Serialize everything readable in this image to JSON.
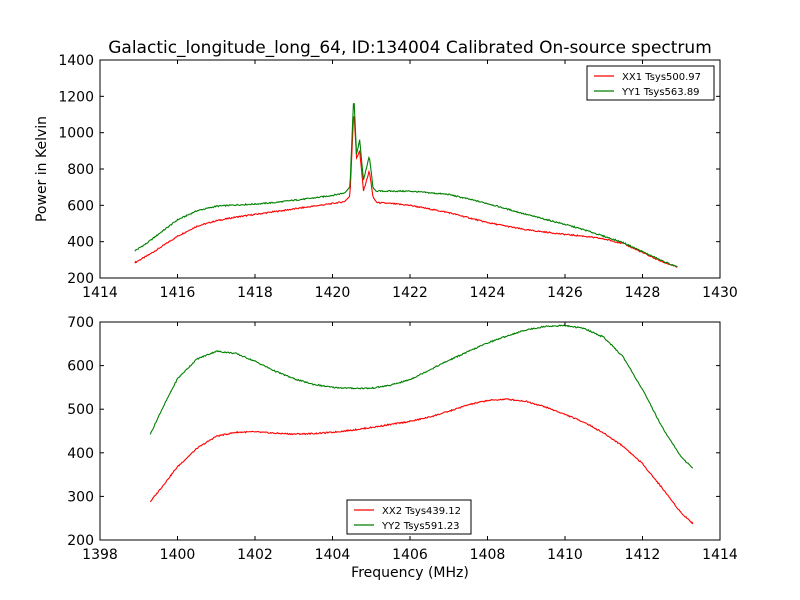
{
  "chart_data": [
    {
      "type": "line",
      "title": "Galactic_longitude_long_64, ID:134004 Calibrated On-source spectrum",
      "xlabel": "",
      "ylabel": "Power in Kelvin",
      "xlim": [
        1414,
        1430
      ],
      "ylim": [
        200,
        1400
      ],
      "xticks": [
        1414,
        1416,
        1418,
        1420,
        1422,
        1424,
        1426,
        1428,
        1430
      ],
      "yticks": [
        200,
        400,
        600,
        800,
        1000,
        1200,
        1400
      ],
      "grid": false,
      "legend_position": "top-right",
      "series": [
        {
          "name": "XX1 Tsys500.97",
          "color": "#ff0000",
          "x": [
            1414.9,
            1415.2,
            1415.5,
            1416.0,
            1416.5,
            1417.0,
            1417.5,
            1418.0,
            1418.5,
            1419.0,
            1419.5,
            1420.0,
            1420.3,
            1420.45,
            1420.55,
            1420.62,
            1420.7,
            1420.8,
            1420.95,
            1421.05,
            1421.15,
            1421.5,
            1422.0,
            1423.0,
            1424.0,
            1425.0,
            1426.0,
            1426.5,
            1427.0,
            1427.5,
            1428.0,
            1428.5,
            1428.9
          ],
          "y": [
            285,
            320,
            360,
            430,
            485,
            515,
            535,
            550,
            565,
            580,
            595,
            610,
            620,
            650,
            1130,
            860,
            900,
            680,
            790,
            640,
            615,
            610,
            600,
            560,
            505,
            465,
            440,
            430,
            415,
            390,
            340,
            290,
            260
          ]
        },
        {
          "name": "YY1 Tsys563.89",
          "color": "#008000",
          "x": [
            1414.9,
            1415.2,
            1415.5,
            1416.0,
            1416.5,
            1417.0,
            1417.5,
            1418.0,
            1418.5,
            1419.0,
            1419.5,
            1420.0,
            1420.3,
            1420.45,
            1420.55,
            1420.62,
            1420.7,
            1420.8,
            1420.95,
            1421.05,
            1421.15,
            1421.5,
            1422.0,
            1423.0,
            1424.0,
            1425.0,
            1426.0,
            1426.5,
            1427.0,
            1427.5,
            1428.0,
            1428.5,
            1428.9
          ],
          "y": [
            350,
            390,
            440,
            520,
            570,
            595,
            602,
            607,
            615,
            628,
            640,
            655,
            668,
            700,
            1210,
            880,
            960,
            740,
            870,
            690,
            678,
            678,
            678,
            660,
            610,
            550,
            495,
            465,
            430,
            395,
            345,
            295,
            260
          ]
        }
      ]
    },
    {
      "type": "line",
      "title": "",
      "xlabel": "Frequency (MHz)",
      "ylabel": "",
      "xlim": [
        1398,
        1414
      ],
      "ylim": [
        200,
        700
      ],
      "xticks": [
        1398,
        1400,
        1402,
        1404,
        1406,
        1408,
        1410,
        1412,
        1414
      ],
      "yticks": [
        200,
        300,
        400,
        500,
        600,
        700
      ],
      "grid": false,
      "legend_position": "bottom-center",
      "series": [
        {
          "name": "XX2 Tsys439.12",
          "color": "#ff0000",
          "x": [
            1399.3,
            1399.6,
            1400.0,
            1400.5,
            1401.0,
            1401.5,
            1402.0,
            1402.5,
            1403.0,
            1403.5,
            1404.0,
            1404.5,
            1405.0,
            1405.5,
            1406.0,
            1406.5,
            1407.0,
            1407.5,
            1408.0,
            1408.5,
            1409.0,
            1409.5,
            1410.0,
            1410.5,
            1411.0,
            1411.5,
            1412.0,
            1412.5,
            1413.0,
            1413.3
          ],
          "y": [
            288,
            322,
            368,
            410,
            438,
            447,
            448,
            445,
            443,
            444,
            447,
            452,
            458,
            465,
            472,
            482,
            495,
            510,
            520,
            523,
            518,
            505,
            488,
            470,
            445,
            415,
            375,
            320,
            262,
            238
          ]
        },
        {
          "name": "YY2 Tsys591.23",
          "color": "#008000",
          "x": [
            1399.3,
            1399.6,
            1400.0,
            1400.5,
            1401.0,
            1401.5,
            1402.0,
            1402.5,
            1403.0,
            1403.5,
            1404.0,
            1404.5,
            1405.0,
            1405.5,
            1406.0,
            1406.5,
            1407.0,
            1407.5,
            1408.0,
            1408.5,
            1409.0,
            1409.5,
            1410.0,
            1410.5,
            1411.0,
            1411.5,
            1412.0,
            1412.5,
            1413.0,
            1413.3
          ],
          "y": [
            443,
            500,
            570,
            615,
            633,
            628,
            610,
            588,
            570,
            557,
            550,
            548,
            548,
            555,
            568,
            590,
            612,
            632,
            652,
            668,
            682,
            690,
            692,
            685,
            665,
            620,
            545,
            460,
            390,
            365
          ]
        }
      ]
    }
  ]
}
